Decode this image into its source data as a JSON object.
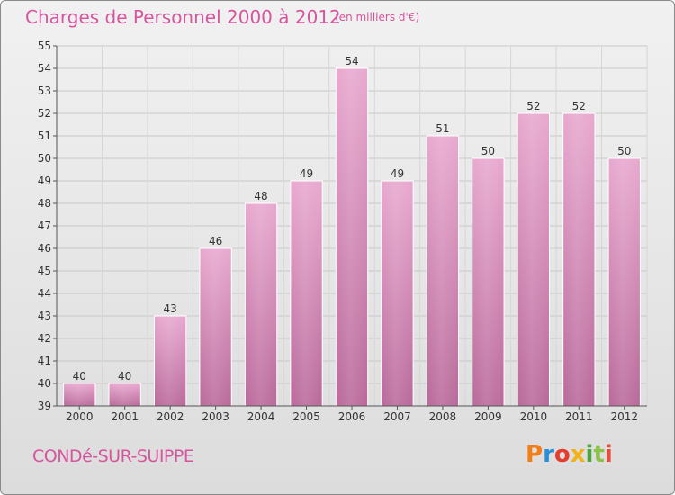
{
  "header": {
    "title": "Charges de Personnel 2000 à 2012",
    "subtitle": "(en milliers d'€)"
  },
  "footer": {
    "commune": "CONDé-SUR-SUIPPE",
    "logo": "Proxiti",
    "logo_colors": [
      "#f07e1a",
      "#2a8fd6",
      "#e43c2f",
      "#f0b21b",
      "#4aa63a",
      "#8bc34a",
      "#e74c3c"
    ]
  },
  "colors": {
    "bar_top": "#e8a8cf",
    "bar_bottom": "#b9699a",
    "accent": "#d6559c",
    "grid": "#c8c8c8"
  },
  "chart_data": {
    "type": "bar",
    "categories": [
      "2000",
      "2001",
      "2002",
      "2003",
      "2004",
      "2005",
      "2006",
      "2007",
      "2008",
      "2009",
      "2010",
      "2011",
      "2012"
    ],
    "values": [
      40,
      40,
      43,
      46,
      48,
      49,
      54,
      49,
      51,
      50,
      52,
      52,
      50
    ],
    "title": "Charges de Personnel 2000 à 2012",
    "subtitle": "(en milliers d'€)",
    "xlabel": "",
    "ylabel": "",
    "ylim": [
      39,
      55
    ],
    "yticks": [
      39,
      40,
      41,
      42,
      43,
      44,
      45,
      46,
      47,
      48,
      49,
      50,
      51,
      52,
      53,
      54,
      55
    ],
    "grid": true,
    "data_labels": true
  }
}
